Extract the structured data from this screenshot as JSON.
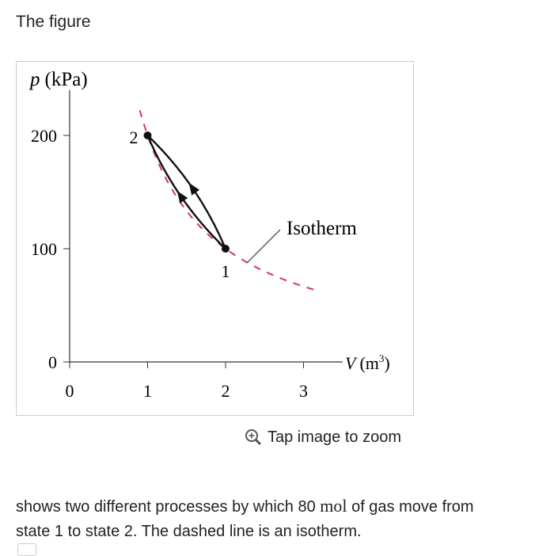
{
  "heading": "The figure",
  "figure": {
    "y_label": {
      "symbol": "p",
      "unit": "(kPa)"
    },
    "x_label": {
      "symbol": "V",
      "unit_open": "(m",
      "unit_power": "3",
      "unit_close": ")"
    },
    "xlim": [
      0,
      3.5
    ],
    "ylim": [
      0,
      240
    ],
    "xticks": [
      0,
      1,
      2,
      3
    ],
    "yticks": [
      0,
      100,
      200
    ],
    "states": [
      {
        "label": "1",
        "x": 2,
        "y": 100
      },
      {
        "label": "2",
        "x": 1,
        "y": 200
      }
    ],
    "isotherm_label": "Isotherm"
  },
  "zoom_hint": "Tap image to zoom",
  "body": {
    "line1_start": "shows two different processes by which 80 ",
    "unit": "mol",
    "line1_end": " of gas move from",
    "line2": "state 1 to state 2. The dashed line is an isotherm."
  }
}
